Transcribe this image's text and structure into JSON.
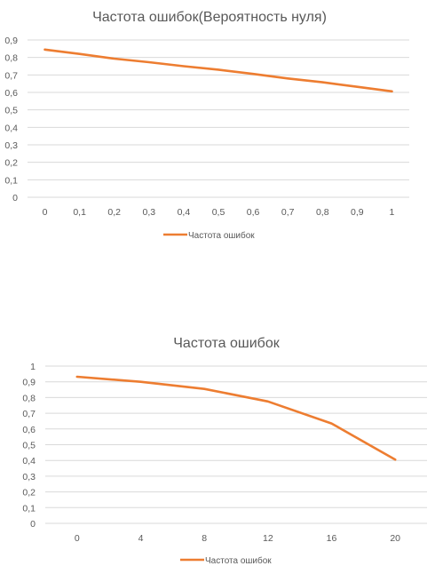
{
  "colors": {
    "series": "#ED7D31",
    "grid": "#D9D9D9",
    "text": "#595959"
  },
  "chart_data": [
    {
      "type": "line",
      "title": "Частота ошибок(Вероятность нуля)",
      "categories": [
        "0",
        "0,1",
        "0,2",
        "0,3",
        "0,4",
        "0,5",
        "0,6",
        "0,7",
        "0,8",
        "0,9",
        "1"
      ],
      "yticks": [
        "0",
        "0,1",
        "0,2",
        "0,3",
        "0,4",
        "0,5",
        "0,6",
        "0,7",
        "0,8",
        "0,9"
      ],
      "ylim": [
        0,
        0.9
      ],
      "grid": true,
      "legend_position": "bottom",
      "series": [
        {
          "name": "Частота ошибок",
          "values": [
            0.845,
            0.82,
            0.793,
            0.773,
            0.75,
            0.73,
            0.706,
            0.68,
            0.658,
            0.632,
            0.606
          ]
        }
      ]
    },
    {
      "type": "line",
      "title": "Частота ошибок",
      "categories": [
        "0",
        "4",
        "8",
        "12",
        "16",
        "20"
      ],
      "yticks": [
        "0",
        "0,1",
        "0,2",
        "0,3",
        "0,4",
        "0,5",
        "0,6",
        "0,7",
        "0,8",
        "0,9",
        "1"
      ],
      "ylim": [
        0,
        1
      ],
      "grid": true,
      "legend_position": "bottom",
      "series": [
        {
          "name": "Частота ошибок",
          "values": [
            0.932,
            0.9,
            0.855,
            0.775,
            0.635,
            0.405
          ]
        }
      ]
    }
  ]
}
